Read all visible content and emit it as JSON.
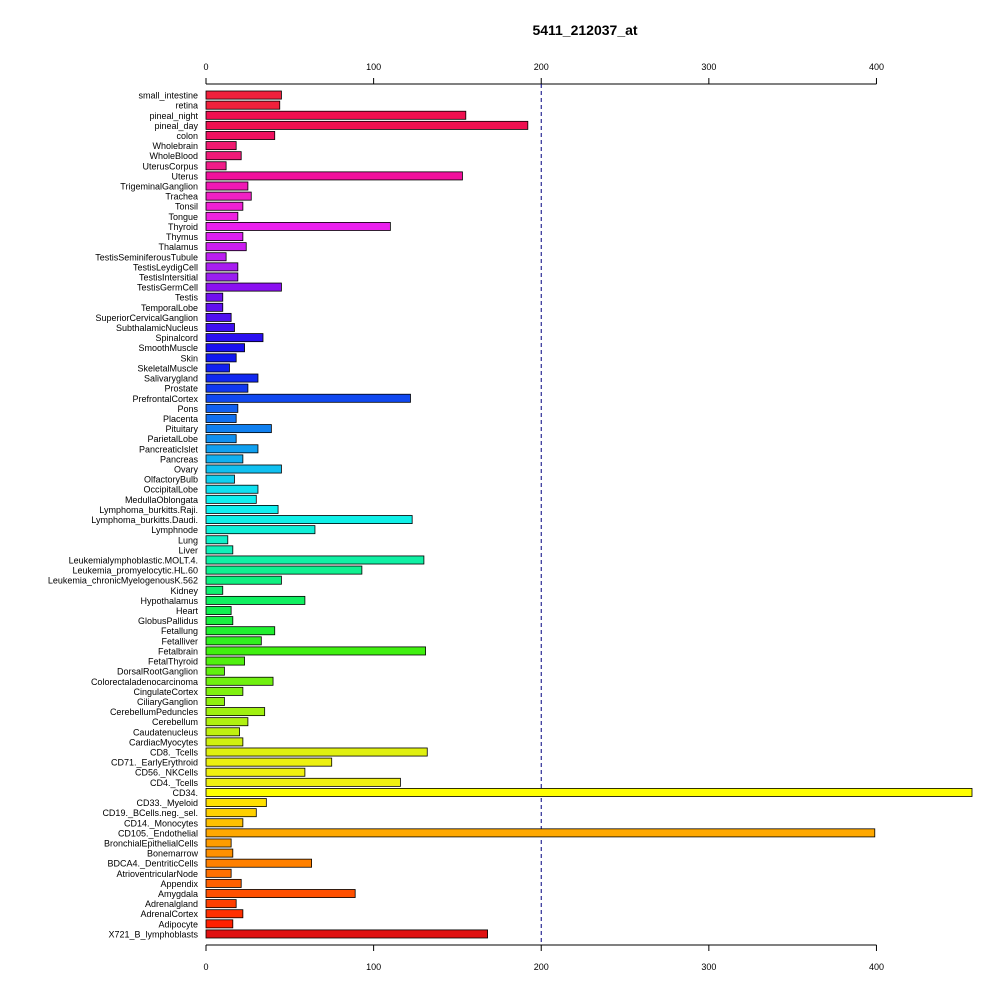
{
  "chart_data": {
    "type": "bar",
    "orientation": "horizontal",
    "title": "5411_212037_at",
    "xlabel": "",
    "ylabel": "",
    "xlim": [
      0,
      457
    ],
    "x_ticks": [
      0,
      100,
      200,
      300,
      400
    ],
    "reference_line": 200,
    "grid": false,
    "categories": [
      "small_intestine",
      "retina",
      "pineal_night",
      "pineal_day",
      "colon",
      "Wholebrain",
      "WholeBlood",
      "UterusCorpus",
      "Uterus",
      "TrigeminalGanglion",
      "Trachea",
      "Tonsil",
      "Tongue",
      "Thyroid",
      "Thymus",
      "Thalamus",
      "TestisSeminiferousTubule",
      "TestisLeydigCell",
      "TestisIntersitial",
      "TestisGermCell",
      "Testis",
      "TemporalLobe",
      "SuperiorCervicalGanglion",
      "SubthalamicNucleus",
      "Spinalcord",
      "SmoothMuscle",
      "Skin",
      "SkeletalMuscle",
      "Salivarygland",
      "Prostate",
      "PrefrontalCortex",
      "Pons",
      "Placenta",
      "Pituitary",
      "ParietalLobe",
      "PancreaticIslet",
      "Pancreas",
      "Ovary",
      "OlfactoryBulb",
      "OccipitalLobe",
      "MedullaOblongata",
      "Lymphoma_burkitts.Raji.",
      "Lymphoma_burkitts.Daudi.",
      "Lymphnode",
      "Lung",
      "Liver",
      "Leukemialymphoblastic.MOLT.4.",
      "Leukemia_promyelocytic.HL.60",
      "Leukemia_chronicMyelogenousK.562",
      "Kidney",
      "Hypothalamus",
      "Heart",
      "GlobusPallidus",
      "Fetallung",
      "Fetalliver",
      "Fetalbrain",
      "FetalThyroid",
      "DorsalRootGanglion",
      "Colorectaladenocarcinoma",
      "CingulateCortex",
      "CiliaryGanglion",
      "CerebellumPeduncles",
      "Cerebellum",
      "Caudatenucleus",
      "CardiacMyocytes",
      "CD8._Tcells",
      "CD71._EarlyErythroid",
      "CD56._NKCells",
      "CD4._Tcells",
      "CD34.",
      "CD33._Myeloid",
      "CD19._BCells.neg._sel.",
      "CD14._Monocytes",
      "CD105._Endothelial",
      "BronchialEpithelialCells",
      "Bonemarrow",
      "BDCA4._DentriticCells",
      "AtrioventricularNode",
      "Appendix",
      "Amygdala",
      "Adrenalgland",
      "AdrenalCortex",
      "Adipocyte",
      "X721_B_lymphoblasts"
    ],
    "values": [
      45,
      44,
      155,
      192,
      41,
      18,
      21,
      12,
      153,
      25,
      27,
      22,
      19,
      110,
      22,
      24,
      12,
      19,
      19,
      45,
      10,
      10,
      15,
      17,
      34,
      23,
      18,
      14,
      31,
      25,
      122,
      19,
      18,
      39,
      18,
      31,
      22,
      45,
      17,
      31,
      30,
      43,
      123,
      65,
      13,
      16,
      130,
      93,
      45,
      10,
      59,
      15,
      16,
      41,
      33,
      131,
      23,
      11,
      40,
      22,
      11,
      35,
      25,
      20,
      22,
      132,
      75,
      59,
      116,
      457,
      36,
      30,
      22,
      399,
      15,
      16,
      63,
      15,
      21,
      89,
      18,
      22,
      16,
      168
    ],
    "colors": [
      "#f0213c",
      "#f0213c",
      "#ef1050",
      "#ef1050",
      "#f01060",
      "#f01a70",
      "#f01a78",
      "#f01c88",
      "#f0109c",
      "#f018b4",
      "#f020c4",
      "#f020d4",
      "#ee22e0",
      "#ea20ee",
      "#dd1ef0",
      "#cc1ef0",
      "#bb1ef0",
      "#a81ef0",
      "#9a1ef0",
      "#8a10f0",
      "#7010f0",
      "#6010f0",
      "#4f10f0",
      "#3f10f0",
      "#2a10f0",
      "#1a10f0",
      "#1018f0",
      "#1020f0",
      "#1028f0",
      "#1038f0",
      "#1048f0",
      "#1060f0",
      "#1070f0",
      "#1080f0",
      "#1090f0",
      "#10a0f0",
      "#10b0f0",
      "#10c0f0",
      "#10d0f0",
      "#10e0f0",
      "#10f0f0",
      "#10f0f0",
      "#10f0e8",
      "#10f0d8",
      "#10f0c8",
      "#10f0b8",
      "#10f0a4",
      "#10f090",
      "#10f080",
      "#10f070",
      "#10f060",
      "#10f050",
      "#18f040",
      "#20f030",
      "#30f020",
      "#40f010",
      "#50f010",
      "#60f010",
      "#70f010",
      "#80f010",
      "#90f010",
      "#a0f010",
      "#b0f010",
      "#c0f010",
      "#d0f010",
      "#e0f010",
      "#ecf010",
      "#f0f010",
      "#f0f010",
      "#ffff00",
      "#ffe000",
      "#ffd000",
      "#ffc000",
      "#ffa800",
      "#ff9c00",
      "#ff9000",
      "#ff8000",
      "#ff7000",
      "#ff6000",
      "#ff5000",
      "#ff4000",
      "#ff3000",
      "#ff2000",
      "#e01010"
    ]
  }
}
